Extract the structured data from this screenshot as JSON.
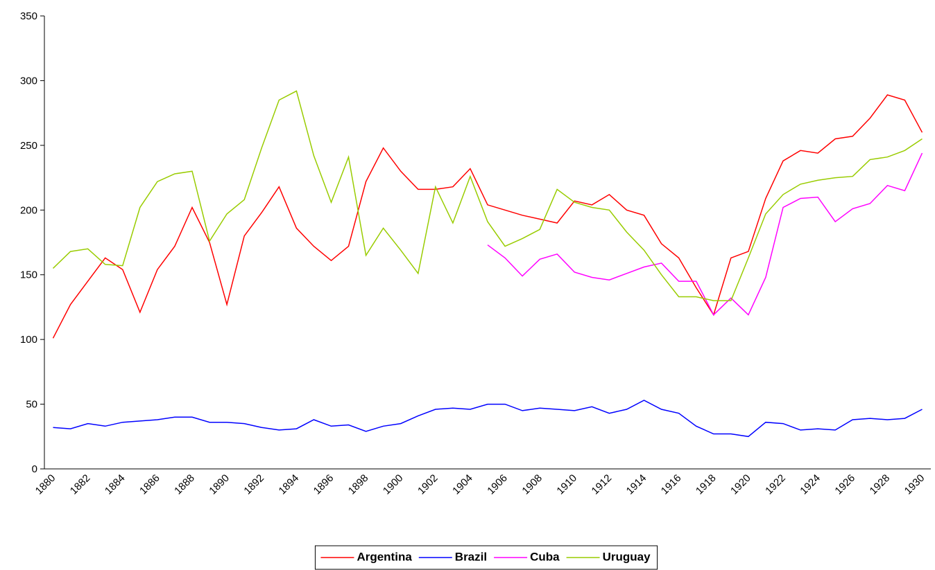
{
  "chart_data": {
    "type": "line",
    "categories": [
      "1880",
      null,
      "1882",
      null,
      "1884",
      null,
      "1886",
      null,
      "1888",
      null,
      "1890",
      null,
      "1892",
      null,
      "1894",
      null,
      "1896",
      null,
      "1898",
      null,
      "1900",
      null,
      "1902",
      null,
      "1904",
      null,
      "1906",
      null,
      "1908",
      null,
      "1910",
      null,
      "1912",
      null,
      "1914",
      null,
      "1916",
      null,
      "1918",
      null,
      "1920",
      null,
      "1922",
      null,
      "1924",
      null,
      "1926",
      null,
      "1928",
      null,
      "1930"
    ],
    "ylim": [
      0,
      350
    ],
    "yticks": [
      0,
      50,
      100,
      150,
      200,
      250,
      300,
      350
    ],
    "grid": false,
    "legend": "bottom",
    "series": [
      {
        "name": "Argentina",
        "color": "#ff0000",
        "values": [
          101,
          127,
          145,
          163,
          154,
          121,
          154,
          172,
          202,
          175,
          127,
          180,
          198,
          218,
          186,
          172,
          161,
          172,
          222,
          248,
          230,
          216,
          216,
          218,
          232,
          204,
          200,
          196,
          193,
          190,
          207,
          204,
          212,
          200,
          196,
          174,
          163,
          140,
          119,
          163,
          168,
          209,
          238,
          246,
          244,
          255,
          257,
          271,
          289,
          285,
          260
        ]
      },
      {
        "name": "Brazil",
        "color": "#0000ff",
        "values": [
          32,
          31,
          35,
          33,
          36,
          37,
          38,
          40,
          40,
          36,
          36,
          35,
          32,
          30,
          31,
          38,
          33,
          34,
          29,
          33,
          35,
          41,
          46,
          47,
          46,
          50,
          50,
          45,
          47,
          46,
          45,
          48,
          43,
          46,
          53,
          46,
          43,
          33,
          27,
          27,
          25,
          36,
          35,
          30,
          31,
          30,
          38,
          39,
          38,
          39,
          46
        ]
      },
      {
        "name": "Cuba",
        "color": "#ff00ff",
        "values": [
          null,
          null,
          null,
          null,
          null,
          null,
          null,
          null,
          null,
          null,
          null,
          null,
          null,
          null,
          null,
          null,
          null,
          null,
          null,
          null,
          null,
          null,
          null,
          null,
          null,
          173,
          163,
          149,
          162,
          166,
          152,
          148,
          146,
          151,
          156,
          159,
          145,
          145,
          119,
          132,
          119,
          148,
          202,
          209,
          210,
          191,
          201,
          205,
          219,
          215,
          244
        ]
      },
      {
        "name": "Uruguay",
        "color": "#99cc00",
        "values": [
          155,
          168,
          170,
          158,
          157,
          202,
          222,
          228,
          230,
          176,
          197,
          208,
          248,
          285,
          292,
          242,
          206,
          241,
          165,
          186,
          169,
          151,
          218,
          190,
          226,
          191,
          172,
          178,
          185,
          216,
          206,
          202,
          200,
          183,
          169,
          150,
          133,
          133,
          130,
          130,
          163,
          197,
          212,
          220,
          223,
          225,
          226,
          239,
          241,
          246,
          255
        ]
      }
    ]
  }
}
